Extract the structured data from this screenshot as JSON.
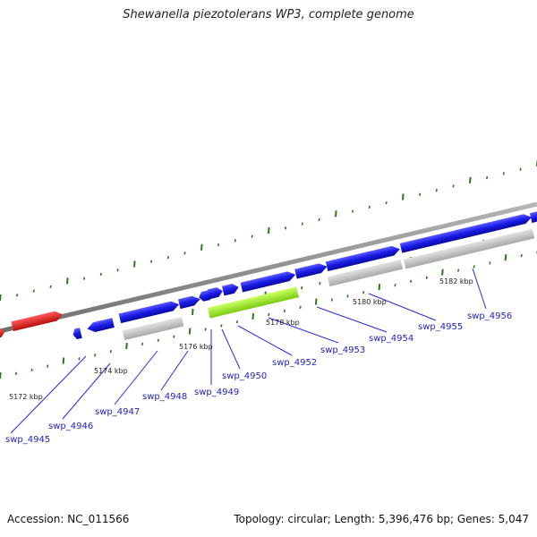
{
  "header": {
    "title": "Shewanella piezotolerans WP3, complete genome"
  },
  "footer": {
    "accession": "Accession: NC_011566",
    "summary": "Topology: circular; Length: 5,396,476 bp; Genes: 5,047"
  },
  "colors": {
    "backbone": "#8c8c8c",
    "gene_forward": "#1a1ae6",
    "gene_highlight": "#99ee22",
    "gene_reverse_gray": "#bdbdbd",
    "gene_red": "#e01a1a",
    "ticks": "#2a7a1a",
    "labels": "#1f1fbf",
    "callouts": "#2a2ae0"
  },
  "scale_labels": [
    "5172 kbp",
    "5174 kbp",
    "5176 kbp",
    "5178 kbp",
    "5180 kbp",
    "5182 kbp"
  ],
  "gene_labels": [
    "swp_4945",
    "swp_4946",
    "swp_4947",
    "swp_4948",
    "swp_4949",
    "swp_4950",
    "swp_4952",
    "swp_4953",
    "swp_4954",
    "swp_4955",
    "swp_4956"
  ]
}
